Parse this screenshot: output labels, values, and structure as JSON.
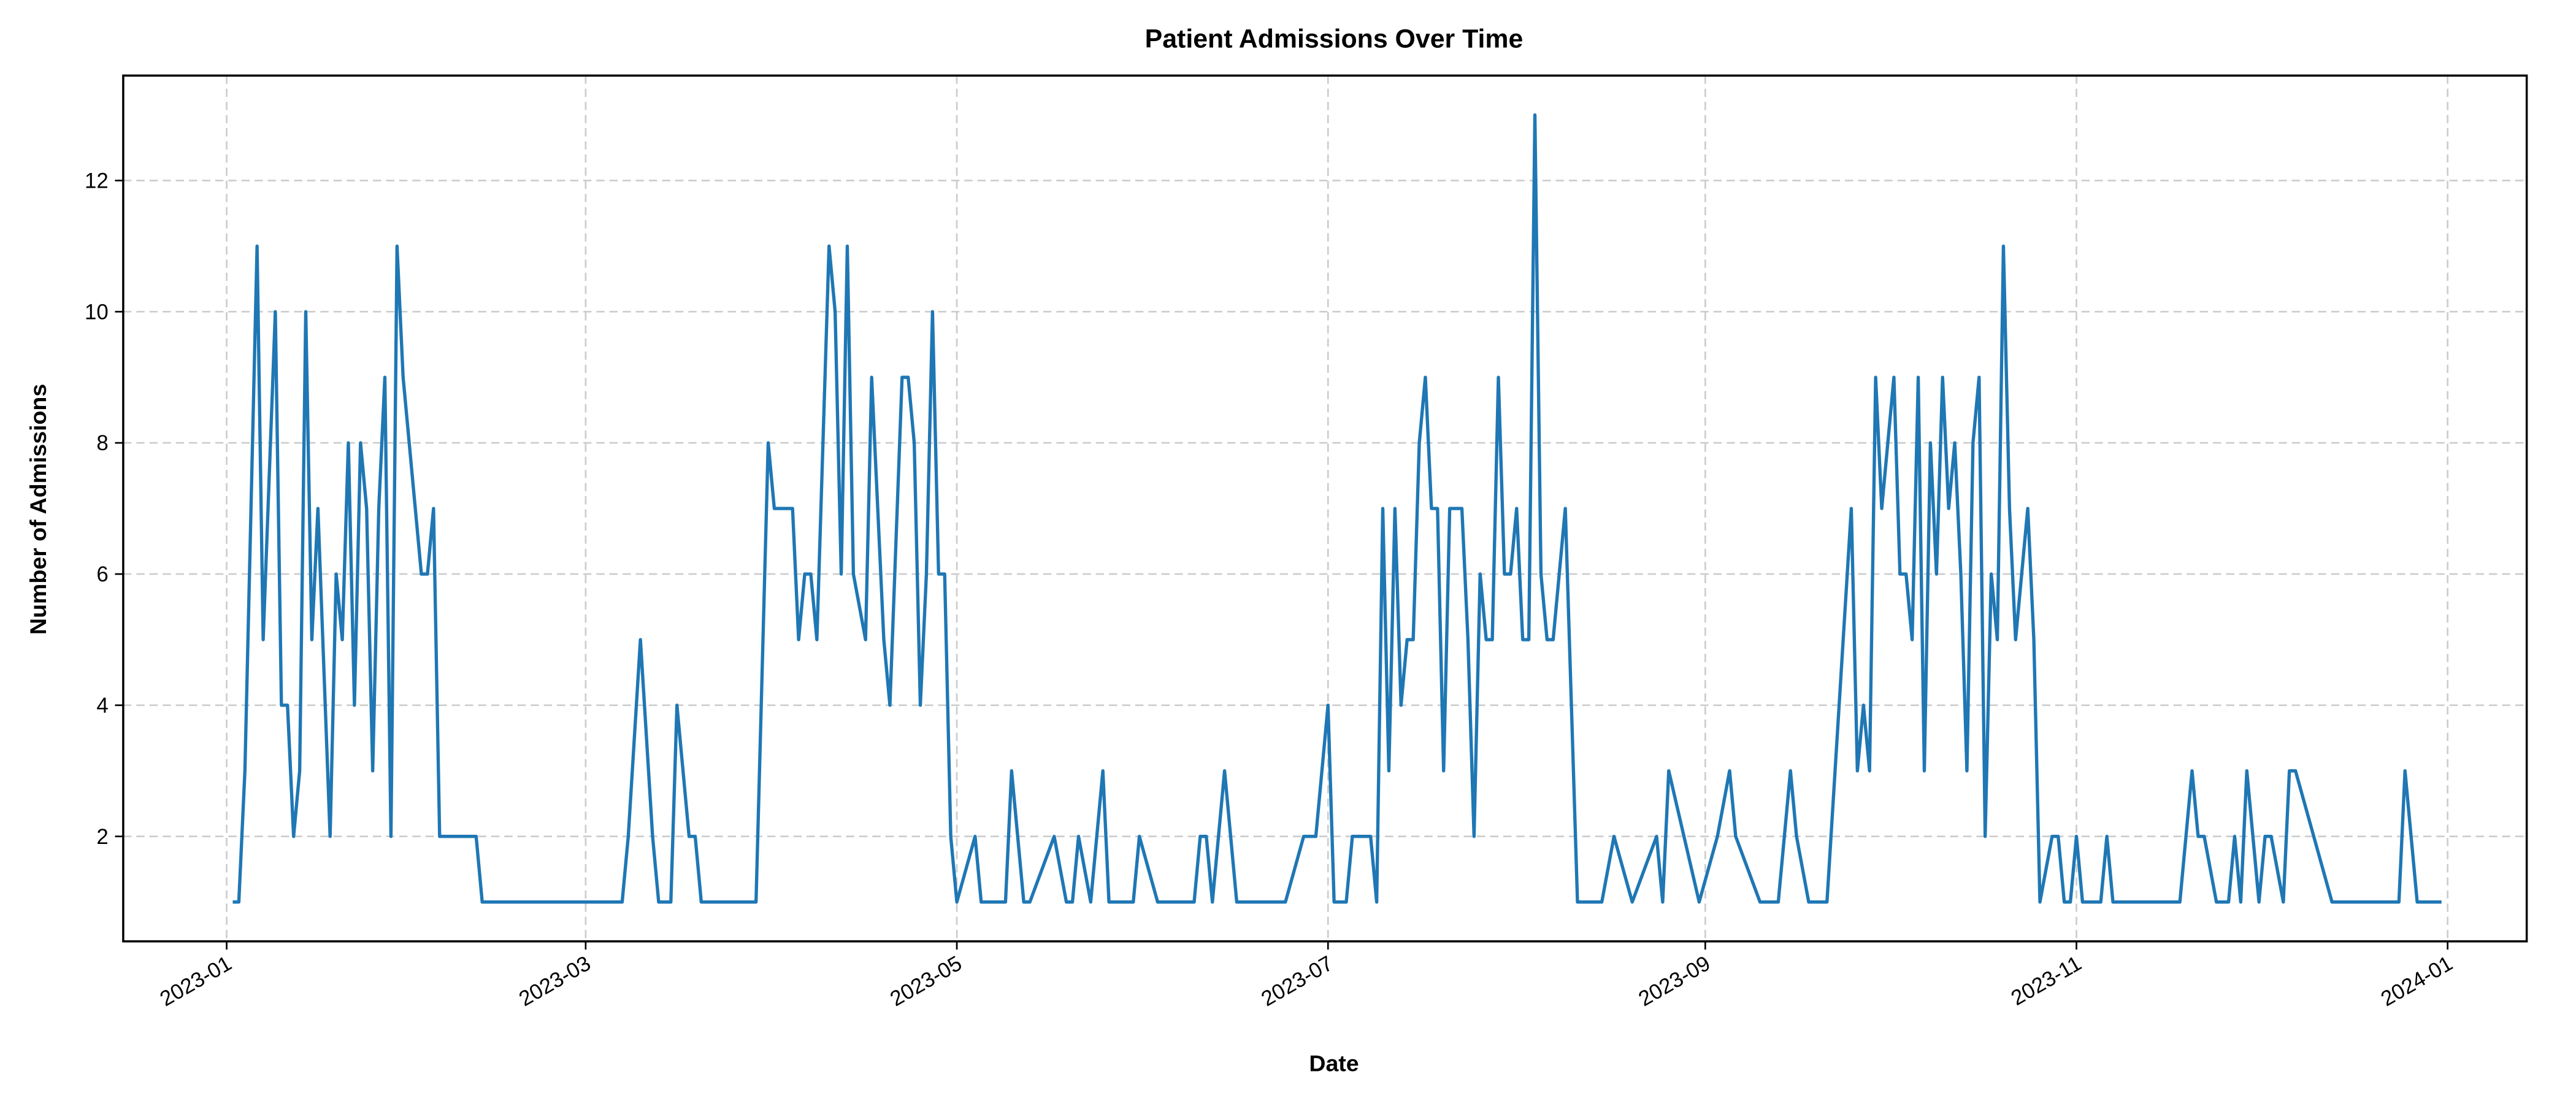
{
  "chart_data": {
    "type": "line",
    "title": "Patient Admissions Over Time",
    "x_label": "Date",
    "y_label": "Number of Admissions",
    "color": "#1f77b4",
    "grid": true,
    "xlim": [
      "2022-12-15",
      "2024-01-14"
    ],
    "ylim": [
      0.4,
      13.6
    ],
    "xticks": [
      {
        "value": "2023-01-01",
        "label": "2023-01"
      },
      {
        "value": "2023-03-01",
        "label": "2023-03"
      },
      {
        "value": "2023-05-01",
        "label": "2023-05"
      },
      {
        "value": "2023-07-01",
        "label": "2023-07"
      },
      {
        "value": "2023-09-01",
        "label": "2023-09"
      },
      {
        "value": "2023-11-01",
        "label": "2023-11"
      },
      {
        "value": "2024-01-01",
        "label": "2024-01"
      }
    ],
    "yticks": [
      2,
      4,
      6,
      8,
      10,
      12
    ],
    "x": [
      "2023-01-02",
      "2023-01-03",
      "2023-01-04",
      "2023-01-06",
      "2023-01-07",
      "2023-01-09",
      "2023-01-10",
      "2023-01-11",
      "2023-01-12",
      "2023-01-13",
      "2023-01-14",
      "2023-01-15",
      "2023-01-16",
      "2023-01-18",
      "2023-01-19",
      "2023-01-20",
      "2023-01-21",
      "2023-01-22",
      "2023-01-23",
      "2023-01-24",
      "2023-01-25",
      "2023-01-26",
      "2023-01-27",
      "2023-01-28",
      "2023-01-29",
      "2023-01-30",
      "2023-01-31",
      "2023-02-01",
      "2023-02-02",
      "2023-02-03",
      "2023-02-04",
      "2023-02-05",
      "2023-02-11",
      "2023-02-12",
      "2023-03-07",
      "2023-03-08",
      "2023-03-10",
      "2023-03-12",
      "2023-03-13",
      "2023-03-15",
      "2023-03-16",
      "2023-03-18",
      "2023-03-19",
      "2023-03-20",
      "2023-03-29",
      "2023-03-31",
      "2023-04-01",
      "2023-04-04",
      "2023-04-05",
      "2023-04-06",
      "2023-04-07",
      "2023-04-08",
      "2023-04-10",
      "2023-04-11",
      "2023-04-12",
      "2023-04-13",
      "2023-04-14",
      "2023-04-16",
      "2023-04-17",
      "2023-04-19",
      "2023-04-20",
      "2023-04-22",
      "2023-04-23",
      "2023-04-24",
      "2023-04-25",
      "2023-04-26",
      "2023-04-27",
      "2023-04-28",
      "2023-04-29",
      "2023-04-30",
      "2023-05-01",
      "2023-05-04",
      "2023-05-05",
      "2023-05-09",
      "2023-05-10",
      "2023-05-12",
      "2023-05-13",
      "2023-05-17",
      "2023-05-19",
      "2023-05-20",
      "2023-05-21",
      "2023-05-23",
      "2023-05-25",
      "2023-05-26",
      "2023-05-30",
      "2023-05-31",
      "2023-06-03",
      "2023-06-09",
      "2023-06-10",
      "2023-06-11",
      "2023-06-12",
      "2023-06-14",
      "2023-06-16",
      "2023-06-24",
      "2023-06-27",
      "2023-06-29",
      "2023-07-01",
      "2023-07-02",
      "2023-07-04",
      "2023-07-05",
      "2023-07-08",
      "2023-07-09",
      "2023-07-10",
      "2023-07-11",
      "2023-07-12",
      "2023-07-13",
      "2023-07-14",
      "2023-07-15",
      "2023-07-16",
      "2023-07-17",
      "2023-07-18",
      "2023-07-19",
      "2023-07-20",
      "2023-07-21",
      "2023-07-23",
      "2023-07-24",
      "2023-07-25",
      "2023-07-26",
      "2023-07-27",
      "2023-07-28",
      "2023-07-29",
      "2023-07-30",
      "2023-07-31",
      "2023-08-01",
      "2023-08-02",
      "2023-08-03",
      "2023-08-04",
      "2023-08-05",
      "2023-08-06",
      "2023-08-07",
      "2023-08-09",
      "2023-08-11",
      "2023-08-15",
      "2023-08-17",
      "2023-08-20",
      "2023-08-24",
      "2023-08-25",
      "2023-08-26",
      "2023-08-31",
      "2023-09-03",
      "2023-09-05",
      "2023-09-06",
      "2023-09-10",
      "2023-09-13",
      "2023-09-15",
      "2023-09-16",
      "2023-09-18",
      "2023-09-21",
      "2023-09-25",
      "2023-09-26",
      "2023-09-27",
      "2023-09-28",
      "2023-09-29",
      "2023-09-30",
      "2023-10-02",
      "2023-10-03",
      "2023-10-04",
      "2023-10-05",
      "2023-10-06",
      "2023-10-07",
      "2023-10-08",
      "2023-10-09",
      "2023-10-10",
      "2023-10-11",
      "2023-10-12",
      "2023-10-13",
      "2023-10-14",
      "2023-10-15",
      "2023-10-16",
      "2023-10-17",
      "2023-10-18",
      "2023-10-19",
      "2023-10-20",
      "2023-10-21",
      "2023-10-22",
      "2023-10-24",
      "2023-10-25",
      "2023-10-26",
      "2023-10-28",
      "2023-10-29",
      "2023-10-30",
      "2023-10-31",
      "2023-11-01",
      "2023-11-02",
      "2023-11-05",
      "2023-11-06",
      "2023-11-07",
      "2023-11-18",
      "2023-11-20",
      "2023-11-21",
      "2023-11-22",
      "2023-11-24",
      "2023-11-26",
      "2023-11-27",
      "2023-11-28",
      "2023-11-29",
      "2023-12-01",
      "2023-12-02",
      "2023-12-03",
      "2023-12-05",
      "2023-12-06",
      "2023-12-07",
      "2023-12-13",
      "2023-12-24",
      "2023-12-25",
      "2023-12-27",
      "2023-12-31"
    ],
    "values": [
      1,
      1,
      3,
      11,
      5,
      10,
      4,
      4,
      2,
      3,
      10,
      5,
      7,
      2,
      6,
      5,
      8,
      4,
      8,
      7,
      3,
      7,
      9,
      2,
      11,
      9,
      8,
      7,
      6,
      6,
      7,
      2,
      2,
      1,
      1,
      2,
      5,
      2,
      1,
      1,
      4,
      2,
      2,
      1,
      1,
      8,
      7,
      7,
      5,
      6,
      6,
      5,
      11,
      10,
      6,
      11,
      6,
      5,
      9,
      5,
      4,
      9,
      9,
      8,
      4,
      6,
      10,
      6,
      6,
      2,
      1,
      2,
      1,
      1,
      3,
      1,
      1,
      2,
      1,
      1,
      2,
      1,
      3,
      1,
      1,
      2,
      1,
      1,
      2,
      2,
      1,
      3,
      1,
      1,
      2,
      2,
      4,
      1,
      1,
      2,
      2,
      1,
      7,
      3,
      7,
      4,
      5,
      5,
      8,
      9,
      7,
      7,
      3,
      7,
      7,
      5,
      2,
      6,
      5,
      5,
      9,
      6,
      6,
      7,
      5,
      5,
      13,
      6,
      5,
      5,
      7,
      1,
      1,
      2,
      1,
      2,
      1,
      3,
      1,
      2,
      3,
      2,
      1,
      1,
      3,
      2,
      1,
      1,
      7,
      3,
      4,
      3,
      9,
      7,
      9,
      6,
      6,
      5,
      9,
      3,
      8,
      6,
      9,
      7,
      8,
      6,
      3,
      8,
      9,
      2,
      6,
      5,
      11,
      7,
      5,
      7,
      5,
      1,
      2,
      2,
      1,
      1,
      2,
      1,
      1,
      2,
      1,
      1,
      3,
      2,
      2,
      1,
      1,
      2,
      1,
      3,
      1,
      2,
      2,
      1,
      3,
      3,
      1,
      1,
      3,
      1,
      1
    ]
  }
}
